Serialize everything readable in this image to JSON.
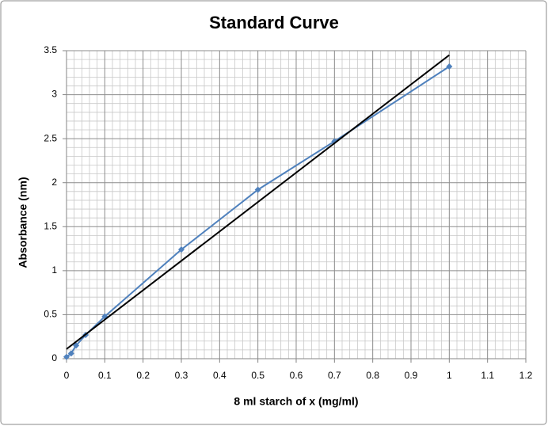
{
  "chart_data": {
    "type": "line",
    "title": "Standard Curve",
    "x_label": "8 ml starch of x (mg/ml)",
    "y_label": "Absorbance (nm)",
    "xlim": [
      0,
      1.2
    ],
    "xticks": [
      0,
      0.1,
      0.2,
      0.3,
      0.4,
      0.5,
      0.6,
      0.7,
      0.8,
      0.9,
      1,
      1.1,
      1.2
    ],
    "ylim": [
      0,
      3.5
    ],
    "yticks": [
      0,
      0.5,
      1,
      1.5,
      2,
      2.5,
      3,
      3.5
    ],
    "grid": true,
    "series": [
      {
        "color": "#4f81bd",
        "markers": true,
        "x": [
          0,
          0.012,
          0.025,
          0.05,
          0.1,
          0.3,
          0.5,
          0.7,
          1
        ],
        "values": [
          0.02,
          0.06,
          0.15,
          0.27,
          0.48,
          1.24,
          1.92,
          2.47,
          3.32
        ]
      },
      {
        "color": "#000000",
        "markers": false,
        "x": [
          0,
          1
        ],
        "values": [
          0.11,
          3.45
        ]
      }
    ]
  }
}
